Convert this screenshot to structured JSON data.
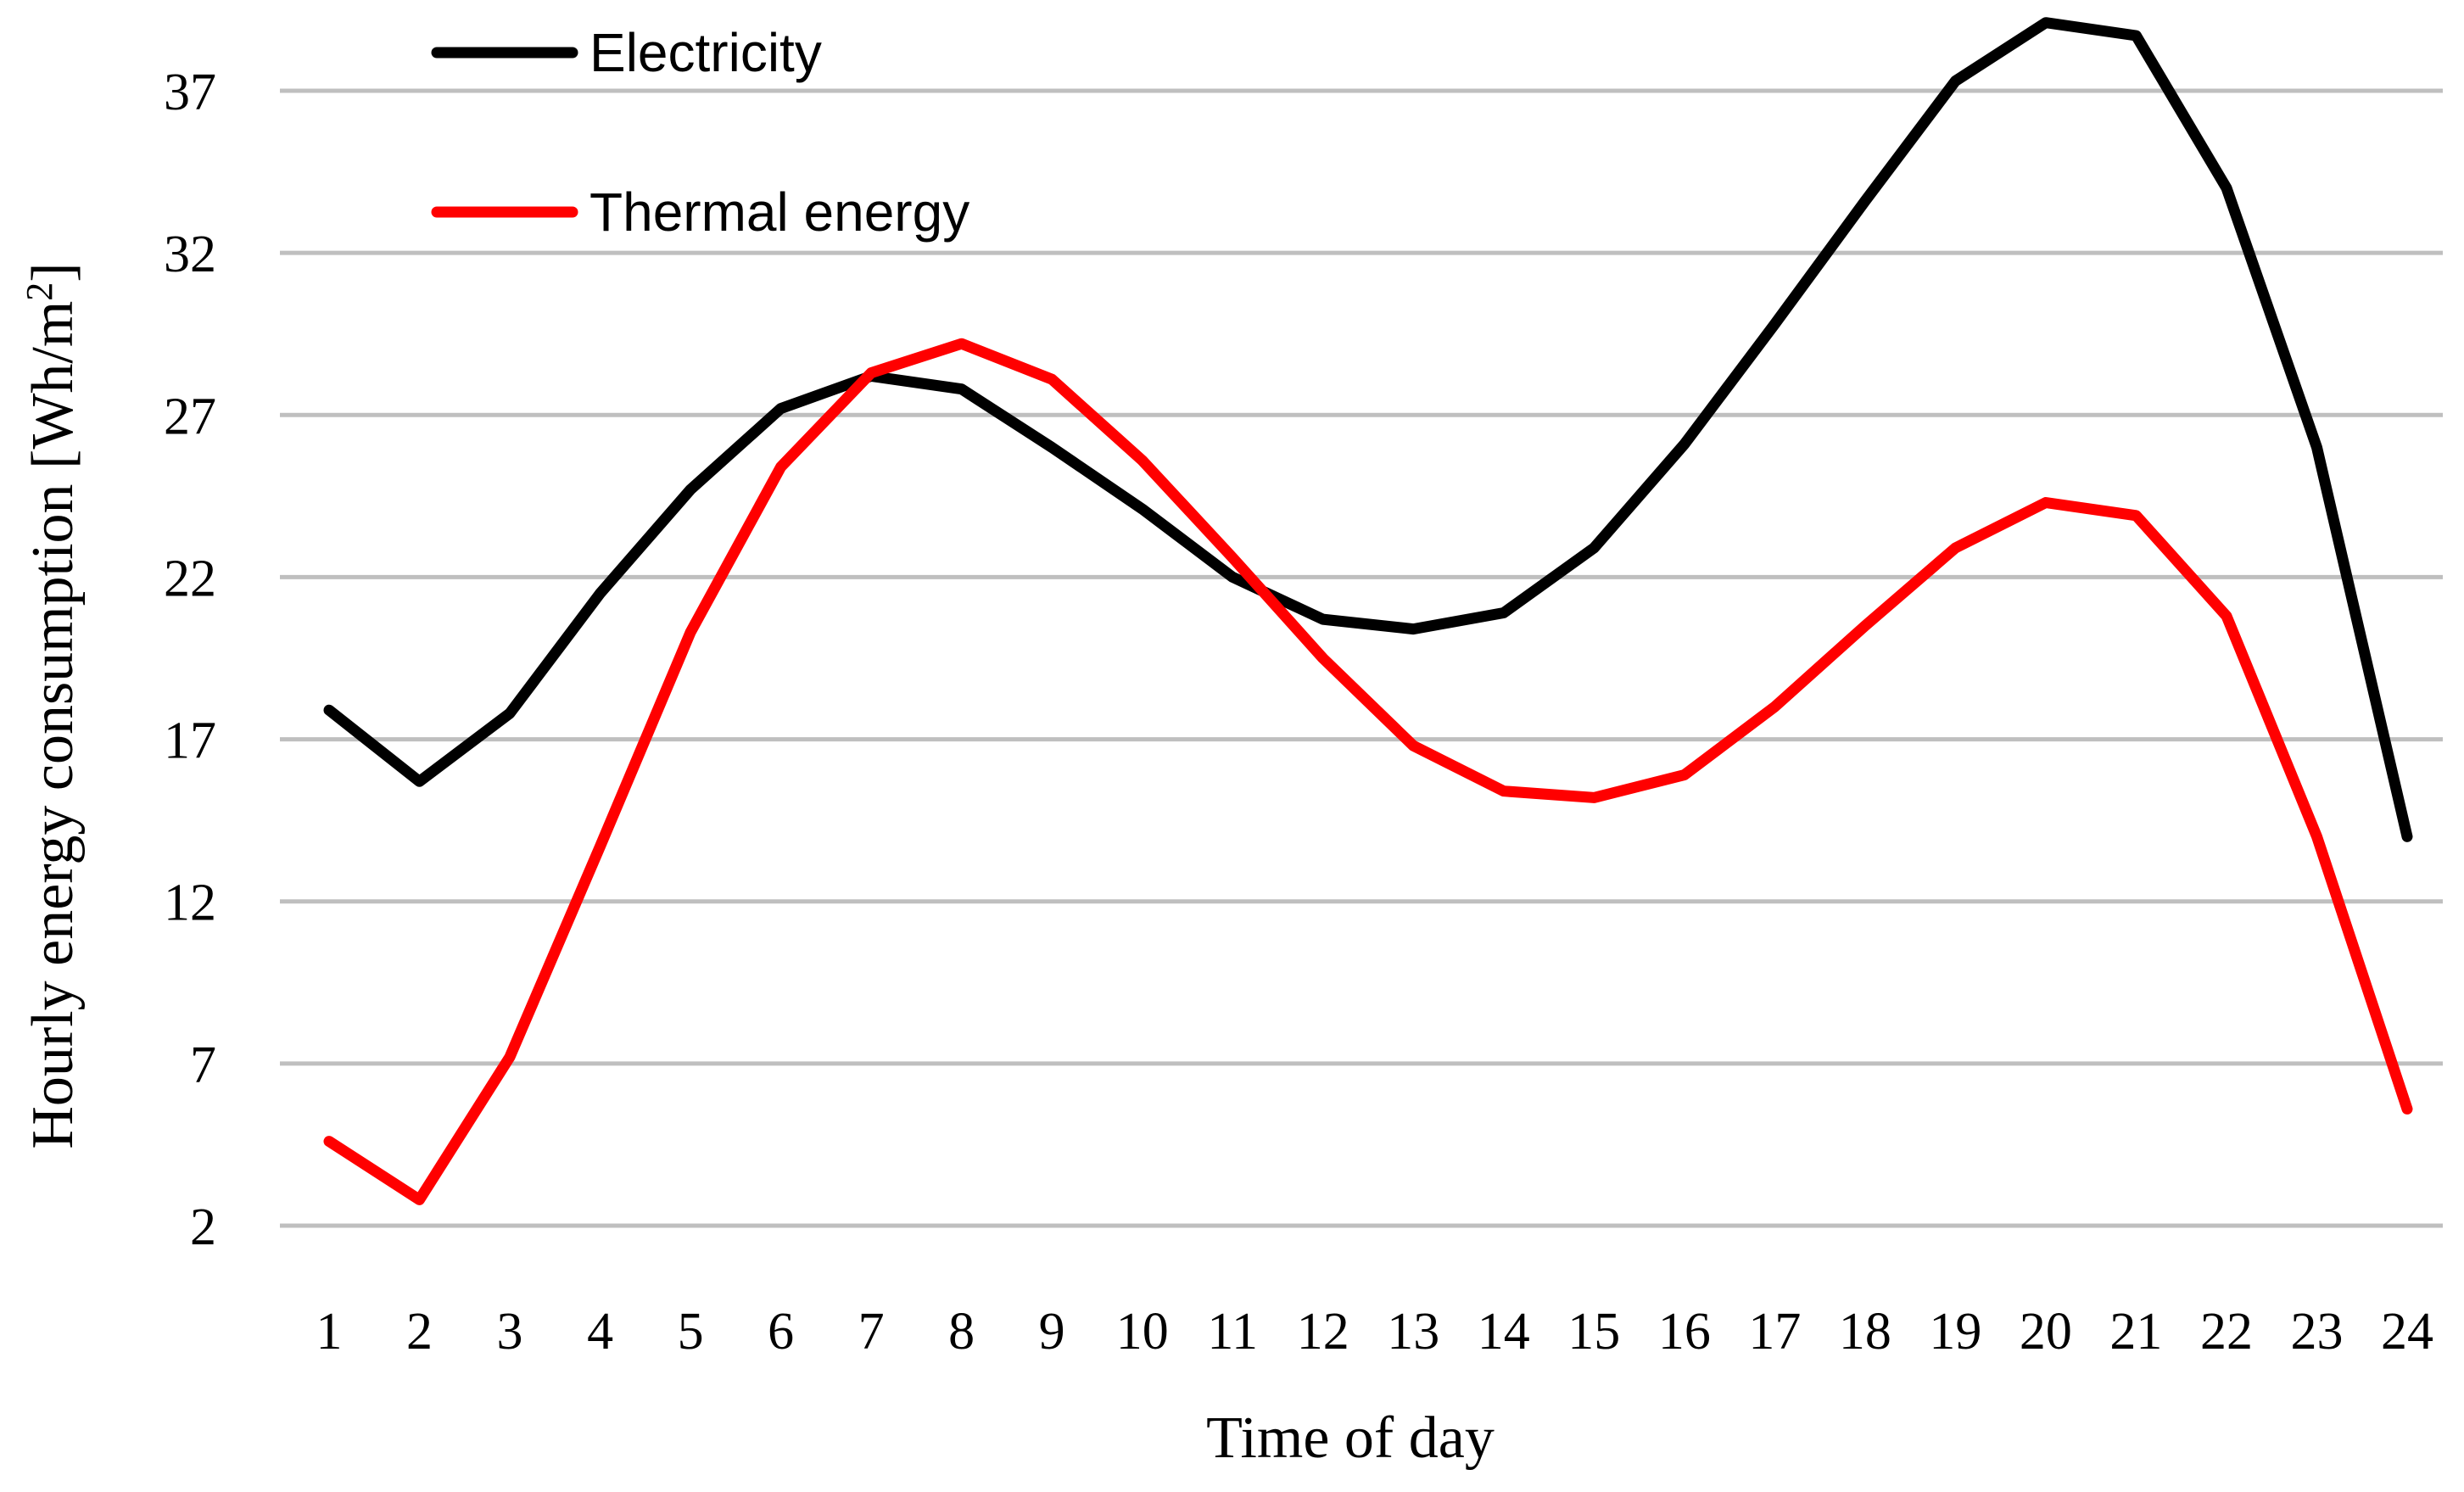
{
  "chart_data": {
    "type": "line",
    "xlabel": "Time of day",
    "ylabel": "Hourly energy consumption [Wh/m",
    "ylabel_sup": "2",
    "ylabel_close": "]",
    "x": [
      1,
      2,
      3,
      4,
      5,
      6,
      7,
      8,
      9,
      10,
      11,
      12,
      13,
      14,
      15,
      16,
      17,
      18,
      19,
      20,
      21,
      22,
      23,
      24
    ],
    "yticks": [
      2,
      7,
      12,
      17,
      22,
      27,
      32,
      37
    ],
    "ylim": [
      2,
      39
    ],
    "grid": true,
    "legend_position": "top-left",
    "series": [
      {
        "name": "Electricity",
        "color": "#000000",
        "values": [
          17.9,
          15.7,
          17.8,
          21.5,
          24.7,
          27.2,
          28.2,
          27.8,
          26.0,
          24.1,
          22.0,
          20.7,
          20.4,
          20.9,
          22.9,
          26.1,
          29.8,
          33.6,
          37.3,
          39.1,
          38.7,
          34.0,
          26.0,
          14.0
        ]
      },
      {
        "name": "Thermal energy",
        "color": "#ff0000",
        "values": [
          4.6,
          2.8,
          7.2,
          13.7,
          20.3,
          25.4,
          28.3,
          29.2,
          28.1,
          25.6,
          22.6,
          19.5,
          16.8,
          15.4,
          15.2,
          15.9,
          18.0,
          20.5,
          22.9,
          24.3,
          23.9,
          20.8,
          14.0,
          5.6
        ]
      }
    ]
  }
}
